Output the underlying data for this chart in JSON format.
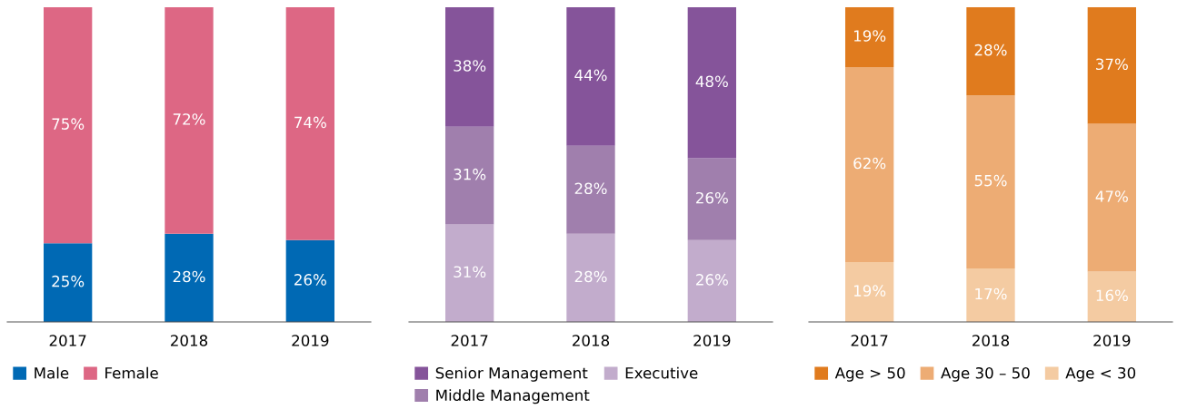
{
  "chart_data": [
    {
      "type": "bar",
      "stacked": true,
      "legend": "bottom",
      "categories": [
        "2017",
        "2018",
        "2019"
      ],
      "series": [
        {
          "name": "Male",
          "color": "#0069b4",
          "values": [
            25,
            28,
            26
          ],
          "value_labels": [
            "25%",
            "28%",
            "26%"
          ]
        },
        {
          "name": "Female",
          "color": "#dd6784",
          "values": [
            75,
            72,
            74
          ],
          "value_labels": [
            "75%",
            "72%",
            "74%"
          ]
        }
      ]
    },
    {
      "type": "bar",
      "stacked": true,
      "legend": "bottom",
      "categories": [
        "2017",
        "2018",
        "2019"
      ],
      "series": [
        {
          "name": "Executive",
          "color": "#c2accc",
          "values": [
            31,
            28,
            26
          ],
          "value_labels": [
            "31%",
            "28%",
            "26%"
          ]
        },
        {
          "name": "Middle Management",
          "color": "#a07fad",
          "values": [
            31,
            28,
            26
          ],
          "value_labels": [
            "31%",
            "28%",
            "26%"
          ]
        },
        {
          "name": "Senior Management",
          "color": "#85549a",
          "values": [
            38,
            44,
            48
          ],
          "value_labels": [
            "38%",
            "44%",
            "48%"
          ]
        }
      ]
    },
    {
      "type": "bar",
      "stacked": true,
      "legend": "bottom",
      "categories": [
        "2017",
        "2018",
        "2019"
      ],
      "series": [
        {
          "name": "Age < 30",
          "color": "#f4cba2",
          "values": [
            19,
            17,
            16
          ],
          "value_labels": [
            "19%",
            "17%",
            "16%"
          ]
        },
        {
          "name": "Age 30 – 50",
          "color": "#edac74",
          "values": [
            62,
            55,
            47
          ],
          "value_labels": [
            "62%",
            "55%",
            "47%"
          ]
        },
        {
          "name": "Age > 50",
          "color": "#e07b1e",
          "values": [
            19,
            28,
            37
          ],
          "value_labels": [
            "19%",
            "28%",
            "37%"
          ]
        }
      ]
    }
  ]
}
